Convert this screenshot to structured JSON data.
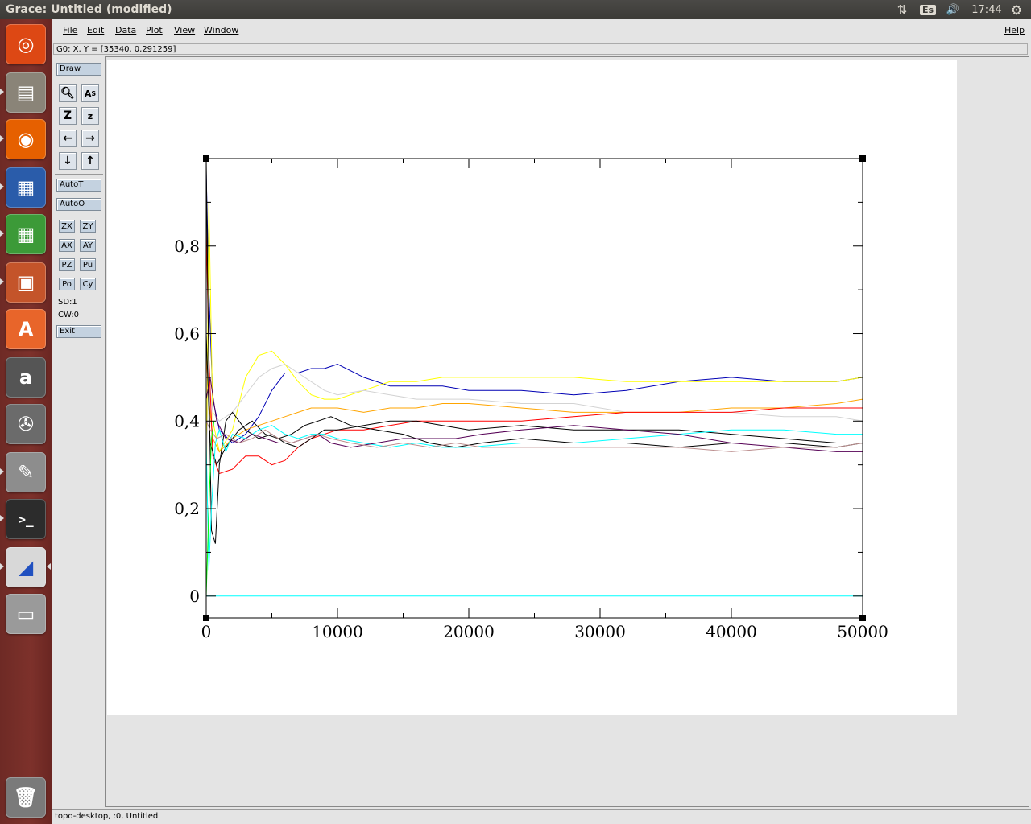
{
  "window": {
    "title": "Grace: Untitled (modified)"
  },
  "tray": {
    "network": "⇅",
    "keyboard": "Es",
    "volume": "🔊",
    "clock": "17:44",
    "settings": "⚙"
  },
  "launcher": [
    {
      "name": "ubuntu-home-icon",
      "glyph": "◎",
      "color": "#dd4814"
    },
    {
      "name": "files-icon",
      "glyph": "▤",
      "color": "#8a8478"
    },
    {
      "name": "firefox-icon",
      "glyph": "◉",
      "color": "#e66000"
    },
    {
      "name": "writer-icon",
      "glyph": "▦",
      "color": "#2a5caa"
    },
    {
      "name": "calc-icon",
      "glyph": "▦",
      "color": "#3c9a38"
    },
    {
      "name": "impress-icon",
      "glyph": "▣",
      "color": "#c4542a"
    },
    {
      "name": "software-center-icon",
      "glyph": "A",
      "color": "#e8652a"
    },
    {
      "name": "amazon-icon",
      "glyph": "a",
      "color": "#555555"
    },
    {
      "name": "system-settings-icon",
      "glyph": "✇",
      "color": "#6b6b6b"
    },
    {
      "name": "text-editor-icon",
      "glyph": "✎",
      "color": "#8d8d8d"
    },
    {
      "name": "terminal-icon",
      "glyph": ">_",
      "color": "#2c2c2c"
    },
    {
      "name": "grace-icon",
      "glyph": "◢",
      "color": "#d8d8d8"
    },
    {
      "name": "drive-icon",
      "glyph": "▭",
      "color": "#9a9a9a"
    },
    {
      "name": "trash-icon",
      "glyph": "🗑",
      "color": "#7a7a7a"
    }
  ],
  "menubar": {
    "file": "File",
    "edit": "Edit",
    "data": "Data",
    "plot": "Plot",
    "view": "View",
    "window": "Window",
    "help": "Help"
  },
  "locator": "G0: X, Y = [35340, 0,291259]",
  "toolbar": {
    "draw": "Draw",
    "autot": "AutoT",
    "autoo": "AutoO",
    "small_buttons": [
      "ZX",
      "ZY",
      "AX",
      "AY",
      "PZ",
      "Pu",
      "Po",
      "Cy"
    ],
    "sd": "SD:1",
    "cw": "CW:0",
    "exit": "Exit"
  },
  "statusbar": "topo-desktop, :0, Untitled",
  "chart_data": {
    "type": "line",
    "title": "",
    "xlabel": "",
    "ylabel": "",
    "xlim": [
      0,
      50000
    ],
    "ylim": [
      -0.05,
      1.0
    ],
    "xticks": [
      "0",
      "10000",
      "20000",
      "30000",
      "40000",
      "50000"
    ],
    "yticks": [
      "0",
      "0,2",
      "0,4",
      "0,6",
      "0,8"
    ],
    "grid": false,
    "series": [
      {
        "color": "#0000b4",
        "x": [
          0,
          200,
          500,
          1000,
          2000,
          3000,
          4000,
          5000,
          6000,
          7000,
          8000,
          9000,
          10000,
          12000,
          14000,
          16000,
          18000,
          20000,
          24000,
          28000,
          32000,
          36000,
          40000,
          44000,
          48000,
          50000
        ],
        "y": [
          0.97,
          0.7,
          0.45,
          0.38,
          0.35,
          0.37,
          0.41,
          0.47,
          0.51,
          0.51,
          0.52,
          0.52,
          0.53,
          0.5,
          0.48,
          0.48,
          0.48,
          0.47,
          0.47,
          0.46,
          0.47,
          0.49,
          0.5,
          0.49,
          0.49,
          0.5
        ]
      },
      {
        "color": "#ffff00",
        "x": [
          0,
          200,
          500,
          1000,
          2000,
          3000,
          4000,
          5000,
          6000,
          7000,
          8000,
          9000,
          10000,
          12000,
          14000,
          16000,
          18000,
          20000,
          24000,
          28000,
          32000,
          36000,
          40000,
          44000,
          48000,
          50000
        ],
        "y": [
          0.2,
          0.9,
          0.4,
          0.33,
          0.38,
          0.5,
          0.55,
          0.56,
          0.53,
          0.49,
          0.46,
          0.45,
          0.45,
          0.47,
          0.49,
          0.49,
          0.5,
          0.5,
          0.5,
          0.5,
          0.49,
          0.49,
          0.49,
          0.49,
          0.49,
          0.5
        ]
      },
      {
        "color": "#d3d3d3",
        "x": [
          0,
          200,
          500,
          1000,
          2000,
          3000,
          4000,
          5000,
          6000,
          7000,
          8000,
          9000,
          10000,
          12000,
          14000,
          16000,
          18000,
          20000,
          24000,
          28000,
          32000,
          36000,
          40000,
          44000,
          48000,
          50000
        ],
        "y": [
          0.3,
          0.5,
          0.42,
          0.4,
          0.42,
          0.46,
          0.5,
          0.52,
          0.53,
          0.51,
          0.49,
          0.47,
          0.46,
          0.47,
          0.46,
          0.45,
          0.45,
          0.45,
          0.44,
          0.44,
          0.42,
          0.42,
          0.42,
          0.41,
          0.41,
          0.4
        ]
      },
      {
        "color": "#ffa500",
        "x": [
          0,
          200,
          500,
          1000,
          2000,
          3000,
          4000,
          5000,
          6000,
          7000,
          8000,
          9000,
          10000,
          12000,
          14000,
          16000,
          18000,
          20000,
          24000,
          28000,
          32000,
          36000,
          40000,
          44000,
          48000,
          50000
        ],
        "y": [
          0.55,
          0.45,
          0.36,
          0.33,
          0.36,
          0.38,
          0.39,
          0.4,
          0.41,
          0.42,
          0.43,
          0.43,
          0.43,
          0.42,
          0.43,
          0.43,
          0.44,
          0.44,
          0.43,
          0.42,
          0.42,
          0.42,
          0.43,
          0.43,
          0.44,
          0.45
        ]
      },
      {
        "color": "#ff0000",
        "x": [
          0,
          200,
          500,
          1000,
          2000,
          3000,
          4000,
          5000,
          6000,
          7000,
          8000,
          9000,
          10000,
          12000,
          14000,
          16000,
          18000,
          20000,
          24000,
          28000,
          32000,
          36000,
          40000,
          44000,
          48000,
          50000
        ],
        "y": [
          0.85,
          0.55,
          0.32,
          0.28,
          0.29,
          0.32,
          0.32,
          0.3,
          0.31,
          0.34,
          0.36,
          0.37,
          0.38,
          0.38,
          0.39,
          0.4,
          0.4,
          0.4,
          0.4,
          0.41,
          0.42,
          0.42,
          0.42,
          0.43,
          0.43,
          0.43
        ]
      },
      {
        "color": "#000000",
        "x": [
          0,
          200,
          400,
          700,
          1000,
          1500,
          2000,
          3000,
          4000,
          5000,
          6000,
          7000,
          8000,
          9000,
          10000,
          12000,
          14000,
          16000,
          18000,
          20000,
          24000,
          28000,
          32000,
          36000,
          40000,
          44000,
          48000,
          50000
        ],
        "y": [
          1.0,
          0.5,
          0.15,
          0.12,
          0.3,
          0.4,
          0.42,
          0.38,
          0.36,
          0.37,
          0.35,
          0.34,
          0.36,
          0.38,
          0.38,
          0.39,
          0.4,
          0.4,
          0.39,
          0.38,
          0.39,
          0.38,
          0.38,
          0.38,
          0.37,
          0.36,
          0.35,
          0.35
        ]
      },
      {
        "color": "#000000",
        "x": [
          0,
          300,
          800,
          1500,
          2500,
          3500,
          4500,
          5500,
          6500,
          7500,
          8500,
          9500,
          11000,
          13000,
          15000,
          17000,
          19000,
          21000,
          24000,
          28000,
          32000,
          36000,
          40000,
          44000,
          48000,
          50000
        ],
        "y": [
          0.6,
          0.35,
          0.3,
          0.34,
          0.38,
          0.4,
          0.37,
          0.36,
          0.37,
          0.39,
          0.4,
          0.41,
          0.39,
          0.38,
          0.37,
          0.35,
          0.34,
          0.35,
          0.36,
          0.35,
          0.35,
          0.34,
          0.35,
          0.35,
          0.34,
          0.35
        ]
      },
      {
        "color": "#00ffff",
        "x": [
          0,
          200,
          400,
          700,
          1000,
          1500,
          2000,
          3000,
          4000,
          5000,
          6000,
          7000,
          8000,
          9000,
          10000,
          12000,
          14000,
          16000,
          18000,
          20000,
          24000,
          28000,
          32000,
          36000,
          40000,
          44000,
          48000,
          50000
        ],
        "y": [
          0.35,
          0.06,
          0.2,
          0.35,
          0.38,
          0.33,
          0.37,
          0.36,
          0.38,
          0.39,
          0.37,
          0.36,
          0.37,
          0.37,
          0.36,
          0.35,
          0.34,
          0.35,
          0.34,
          0.34,
          0.35,
          0.35,
          0.36,
          0.37,
          0.38,
          0.38,
          0.37,
          0.37
        ]
      },
      {
        "color": "#550055",
        "x": [
          0,
          300,
          800,
          1500,
          2500,
          3500,
          4500,
          5500,
          6500,
          7500,
          8500,
          9500,
          11000,
          13000,
          15000,
          17000,
          19000,
          21000,
          24000,
          28000,
          32000,
          36000,
          40000,
          44000,
          48000,
          50000
        ],
        "y": [
          0.45,
          0.5,
          0.4,
          0.36,
          0.35,
          0.37,
          0.36,
          0.35,
          0.35,
          0.36,
          0.37,
          0.35,
          0.34,
          0.35,
          0.36,
          0.36,
          0.36,
          0.37,
          0.38,
          0.39,
          0.38,
          0.37,
          0.35,
          0.34,
          0.33,
          0.33
        ]
      },
      {
        "color": "#bc8f8f",
        "x": [
          0,
          300,
          800,
          1500,
          2500,
          3500,
          4500,
          5500,
          6500,
          7500,
          8500,
          9500,
          11000,
          13000,
          15000,
          17000,
          19000,
          21000,
          24000,
          28000,
          32000,
          36000,
          40000,
          44000,
          48000,
          50000
        ],
        "y": [
          0.4,
          0.38,
          0.36,
          0.37,
          0.35,
          0.36,
          0.38,
          0.36,
          0.35,
          0.36,
          0.37,
          0.36,
          0.35,
          0.34,
          0.35,
          0.34,
          0.35,
          0.34,
          0.34,
          0.34,
          0.34,
          0.34,
          0.33,
          0.34,
          0.34,
          0.35
        ]
      },
      {
        "color": "#00ffff",
        "x": [
          0,
          50000
        ],
        "y": [
          0.0,
          0.0
        ]
      },
      {
        "color": "#00ff00",
        "x": [
          0,
          200,
          400,
          600
        ],
        "y": [
          0.0,
          0.2,
          0.36,
          0.4
        ]
      }
    ]
  }
}
